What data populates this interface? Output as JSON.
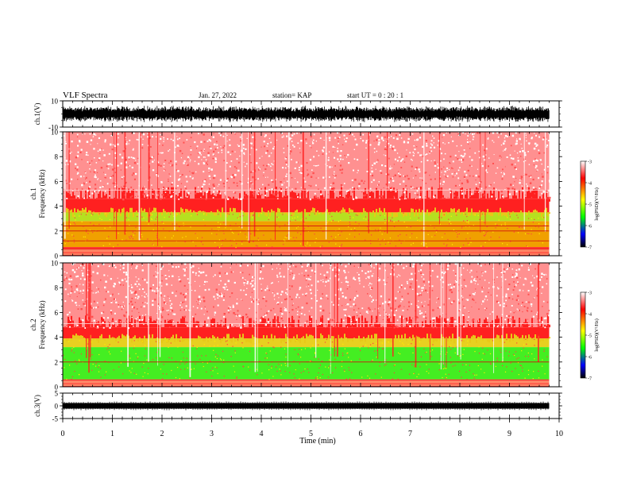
{
  "header": {
    "title": "VLF Spectra",
    "date": "Jan. 27, 2022",
    "station": "station= KAP",
    "start": "start  UT  =   0  : 20 : 1"
  },
  "chart_data": [
    {
      "id": "ch1-waveform",
      "type": "line",
      "ylabel": "ch.1(V)",
      "ylim": [
        -10,
        10
      ],
      "ytick_labels": [
        "10",
        "-10"
      ],
      "xlim": [
        0,
        10
      ],
      "data_end_min": 9.8,
      "style": "dense black noise waveform, amplitude roughly ±6 V"
    },
    {
      "id": "ch1-spectrogram",
      "type": "heatmap",
      "ylabel": "ch.1\nFrequency (kHz)",
      "ylabel_lines": [
        "ch.1",
        "Frequency  (kHz)"
      ],
      "ylim": [
        0,
        10
      ],
      "ytick_labels": [
        "0",
        "2",
        "4",
        "6",
        "8",
        "10"
      ],
      "xlim": [
        0,
        10
      ],
      "data_end_min": 9.8,
      "colorbar": {
        "label": "log(PSD)(V²/Hz)",
        "range": [
          -7,
          -3
        ],
        "tick_labels": [
          "-3",
          "-4",
          "-5",
          "-6",
          "-7"
        ],
        "colors": [
          "#ffffff",
          "#ff0000",
          "#ffff00",
          "#00ff00",
          "#0000ff",
          "#000000"
        ]
      },
      "bands": [
        {
          "fmin": 0.0,
          "fmax": 0.7,
          "color": "#ff2a2a"
        },
        {
          "fmin": 0.7,
          "fmax": 2.8,
          "color": "#f0a000"
        },
        {
          "fmin": 2.8,
          "fmax": 3.5,
          "color": "#b6e020"
        },
        {
          "fmin": 3.5,
          "fmax": 4.6,
          "color": "#ff2020"
        },
        {
          "fmin": 4.6,
          "fmax": 10.0,
          "color": "#ff9090"
        }
      ],
      "line_freqs_khz": [
        0.5,
        1.2,
        2.0,
        2.4,
        5.3
      ]
    },
    {
      "id": "ch2-spectrogram",
      "type": "heatmap",
      "ylabel": "ch.2\nFrequency (kHz)",
      "ylabel_lines": [
        "ch.2",
        "Frequency  (kHz)"
      ],
      "ylim": [
        0,
        10
      ],
      "ytick_labels": [
        "0",
        "2",
        "4",
        "6",
        "8",
        "10"
      ],
      "xlim": [
        0,
        10
      ],
      "data_end_min": 9.8,
      "colorbar": {
        "label": "log(PSD)(V²/Hz)",
        "range": [
          -7,
          -3
        ],
        "tick_labels": [
          "-3",
          "-4",
          "-5",
          "-6",
          "-7"
        ],
        "colors": [
          "#ffffff",
          "#ff0000",
          "#ffff00",
          "#00ff00",
          "#0000ff",
          "#000000"
        ]
      },
      "bands": [
        {
          "fmin": 0.0,
          "fmax": 0.6,
          "color": "#ff3030"
        },
        {
          "fmin": 0.6,
          "fmax": 3.2,
          "color": "#44ee22"
        },
        {
          "fmin": 3.2,
          "fmax": 3.9,
          "color": "#e8d020"
        },
        {
          "fmin": 3.9,
          "fmax": 4.8,
          "color": "#ff2020"
        },
        {
          "fmin": 4.8,
          "fmax": 10.0,
          "color": "#ff9090"
        }
      ],
      "line_freqs_khz": [
        0.5,
        2.0,
        5.1
      ]
    },
    {
      "id": "ch3-waveform",
      "type": "line",
      "ylabel": "ch.3(V)",
      "ylim": [
        -5,
        5
      ],
      "ytick_labels": [
        "5",
        "0",
        "-5"
      ],
      "xlim": [
        0,
        10
      ],
      "data_end_min": 9.8,
      "style": "thick flat black band around 0 V"
    }
  ],
  "xaxis": {
    "label": "Time  (min)",
    "ticks": [
      0,
      1,
      2,
      3,
      4,
      5,
      6,
      7,
      8,
      9,
      10
    ],
    "tick_labels": [
      "0",
      "1",
      "2",
      "3",
      "4",
      "5",
      "6",
      "7",
      "8",
      "9",
      "10"
    ]
  }
}
